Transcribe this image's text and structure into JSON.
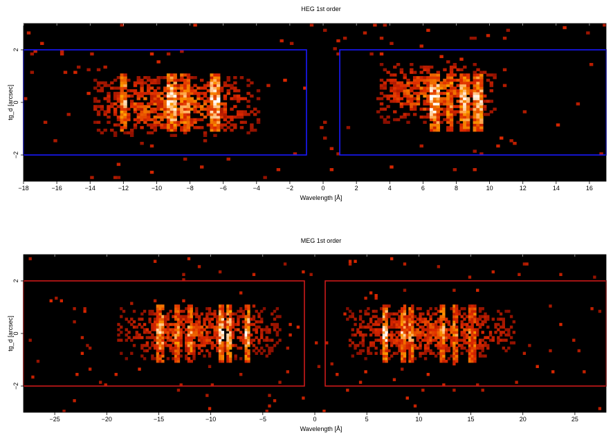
{
  "chart_data": [
    {
      "type": "heatmap",
      "title": "HEG 1st order",
      "xlabel": "Wavelength [Å]",
      "ylabel": "tg_d [arcsec]",
      "xlim": [
        -18,
        17
      ],
      "ylim": [
        -3,
        3
      ],
      "xticks": [
        -18,
        -16,
        -14,
        -12,
        -10,
        -8,
        -6,
        -4,
        -2,
        0,
        2,
        4,
        6,
        8,
        10,
        12,
        14,
        16
      ],
      "xtick_labels": [
        "−18",
        "−16",
        "−14",
        "−12",
        "−10",
        "−8",
        "−6",
        "−4",
        "−2",
        "0",
        "2",
        "4",
        "6",
        "8",
        "10",
        "12",
        "14",
        "16"
      ],
      "yticks": [
        -2,
        0,
        2
      ],
      "ytick_labels": [
        "−2",
        "0",
        "2"
      ],
      "colormap": "black-red-yellow-white",
      "regions": [
        {
          "x": [
            -18,
            -1
          ],
          "y": [
            -2,
            2
          ],
          "color": "#1a1aff"
        },
        {
          "x": [
            1,
            17
          ],
          "y": [
            -2,
            2
          ],
          "color": "#1a1aff"
        }
      ],
      "emission_blobs": [
        {
          "x": [
            -14,
            -4
          ],
          "y": [
            -1.3,
            1.0
          ],
          "peak": 0.55
        },
        {
          "x": [
            3,
            10.2
          ],
          "y": [
            -0.8,
            1.5
          ],
          "peak": 0.55
        }
      ],
      "lines": [
        {
          "x": -12.1,
          "strength": 0.6
        },
        {
          "x": -9.2,
          "strength": 1.0
        },
        {
          "x": -8.4,
          "strength": 0.55
        },
        {
          "x": -6.6,
          "strength": 0.95
        },
        {
          "x": 6.6,
          "strength": 1.0
        },
        {
          "x": 7.5,
          "strength": 0.5
        },
        {
          "x": 8.4,
          "strength": 0.8
        },
        {
          "x": 9.2,
          "strength": 0.85
        }
      ]
    },
    {
      "type": "heatmap",
      "title": "MEG 1st order",
      "xlabel": "Wavelength [Å]",
      "ylabel": "tg_d [arcsec]",
      "xlim": [
        -28,
        28
      ],
      "ylim": [
        -3,
        3
      ],
      "xticks": [
        -25,
        -20,
        -15,
        -10,
        -5,
        0,
        5,
        10,
        15,
        20,
        25
      ],
      "xtick_labels": [
        "−25",
        "−20",
        "−15",
        "−10",
        "−5",
        "0",
        "5",
        "10",
        "15",
        "20",
        "25"
      ],
      "yticks": [
        -2,
        0,
        2
      ],
      "ytick_labels": [
        "−2",
        "0",
        "2"
      ],
      "colormap": "black-red-yellow-white",
      "regions": [
        {
          "x": [
            -28,
            -1
          ],
          "y": [
            -2,
            2
          ],
          "color": "#cc1a1a"
        },
        {
          "x": [
            1,
            28
          ],
          "y": [
            -2,
            2
          ],
          "color": "#cc1a1a"
        }
      ],
      "emission_blobs": [
        {
          "x": [
            -19,
            -3.5
          ],
          "y": [
            -1.0,
            1.0
          ],
          "peak": 0.45
        },
        {
          "x": [
            3,
            19
          ],
          "y": [
            -1.0,
            1.0
          ],
          "peak": 0.45
        }
      ],
      "lines": [
        {
          "x": -15.0,
          "strength": 0.6
        },
        {
          "x": -13.4,
          "strength": 0.4
        },
        {
          "x": -12.1,
          "strength": 0.5
        },
        {
          "x": -9.2,
          "strength": 0.9
        },
        {
          "x": -8.4,
          "strength": 0.7
        },
        {
          "x": -6.6,
          "strength": 0.9
        },
        {
          "x": 6.6,
          "strength": 1.0
        },
        {
          "x": 8.4,
          "strength": 0.6
        },
        {
          "x": 9.2,
          "strength": 0.5
        },
        {
          "x": 12.1,
          "strength": 0.6
        },
        {
          "x": 13.4,
          "strength": 0.35
        },
        {
          "x": 15.0,
          "strength": 0.3
        }
      ]
    }
  ]
}
